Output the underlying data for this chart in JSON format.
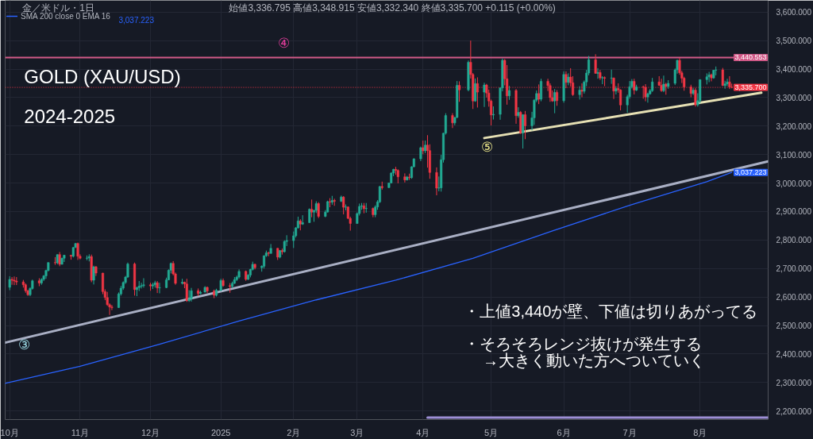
{
  "chart_data": {
    "type": "candlestick",
    "title": "GOLD (XAU/USD)",
    "subtitle": "2024-2025",
    "x": [
      "2024-10-01",
      "2024-10-02",
      "2024-10-03",
      "2024-10-04",
      "2024-10-07",
      "2024-10-08",
      "2024-10-09",
      "2024-10-10",
      "2024-10-11",
      "2024-10-14",
      "2024-10-15",
      "2024-10-16",
      "2024-10-17",
      "2024-10-18",
      "2024-10-21",
      "2024-10-22",
      "2024-10-23",
      "2024-10-24",
      "2024-10-25",
      "2024-10-28",
      "2024-10-29",
      "2024-10-30",
      "2024-10-31",
      "2024-11-01",
      "2024-11-04",
      "2024-11-05",
      "2024-11-06",
      "2024-11-07",
      "2024-11-08",
      "2024-11-11",
      "2024-11-12",
      "2024-11-13",
      "2024-11-14",
      "2024-11-15",
      "2024-11-18",
      "2024-11-19",
      "2024-11-20",
      "2024-11-21",
      "2024-11-22",
      "2024-11-25",
      "2024-11-26",
      "2024-11-27",
      "2024-11-28",
      "2024-11-29",
      "2024-12-02",
      "2024-12-03",
      "2024-12-04",
      "2024-12-05",
      "2024-12-06",
      "2024-12-09",
      "2024-12-10",
      "2024-12-11",
      "2024-12-12",
      "2024-12-13",
      "2024-12-16",
      "2024-12-17",
      "2024-12-18",
      "2024-12-19",
      "2024-12-20",
      "2024-12-23",
      "2024-12-24",
      "2024-12-26",
      "2024-12-27",
      "2024-12-30",
      "2024-12-31",
      "2025-01-02",
      "2025-01-03",
      "2025-01-06",
      "2025-01-07",
      "2025-01-08",
      "2025-01-09",
      "2025-01-10",
      "2025-01-13",
      "2025-01-14",
      "2025-01-15",
      "2025-01-16",
      "2025-01-17",
      "2025-01-20",
      "2025-01-21",
      "2025-01-22",
      "2025-01-23",
      "2025-01-24",
      "2025-01-27",
      "2025-01-28",
      "2025-01-29",
      "2025-01-30",
      "2025-01-31",
      "2025-02-03",
      "2025-02-04",
      "2025-02-05",
      "2025-02-06",
      "2025-02-07",
      "2025-02-10",
      "2025-02-11",
      "2025-02-12",
      "2025-02-13",
      "2025-02-14",
      "2025-02-17",
      "2025-02-18",
      "2025-02-19",
      "2025-02-20",
      "2025-02-21",
      "2025-02-24",
      "2025-02-25",
      "2025-02-26",
      "2025-02-27",
      "2025-02-28",
      "2025-03-03",
      "2025-03-04",
      "2025-03-05",
      "2025-03-06",
      "2025-03-07",
      "2025-03-10",
      "2025-03-11",
      "2025-03-12",
      "2025-03-13",
      "2025-03-14",
      "2025-03-17",
      "2025-03-18",
      "2025-03-19",
      "2025-03-20",
      "2025-03-21",
      "2025-03-24",
      "2025-03-25",
      "2025-03-26",
      "2025-03-27",
      "2025-03-28",
      "2025-03-31",
      "2025-04-01",
      "2025-04-02",
      "2025-04-03",
      "2025-04-04",
      "2025-04-07",
      "2025-04-08",
      "2025-04-09",
      "2025-04-10",
      "2025-04-11",
      "2025-04-14",
      "2025-04-15",
      "2025-04-16",
      "2025-04-17",
      "2025-04-21",
      "2025-04-22",
      "2025-04-23",
      "2025-04-24",
      "2025-04-25",
      "2025-04-28",
      "2025-04-29",
      "2025-04-30",
      "2025-05-01",
      "2025-05-02",
      "2025-05-05",
      "2025-05-06",
      "2025-05-07",
      "2025-05-08",
      "2025-05-09",
      "2025-05-12",
      "2025-05-13",
      "2025-05-14",
      "2025-05-15",
      "2025-05-16",
      "2025-05-19",
      "2025-05-20",
      "2025-05-21",
      "2025-05-22",
      "2025-05-23",
      "2025-05-26",
      "2025-05-27",
      "2025-05-28",
      "2025-05-29",
      "2025-05-30",
      "2025-06-02",
      "2025-06-03",
      "2025-06-04",
      "2025-06-05",
      "2025-06-06",
      "2025-06-09",
      "2025-06-10",
      "2025-06-11",
      "2025-06-12",
      "2025-06-13",
      "2025-06-16",
      "2025-06-17",
      "2025-06-18",
      "2025-06-19",
      "2025-06-20",
      "2025-06-23",
      "2025-06-24",
      "2025-06-25",
      "2025-06-26",
      "2025-06-27",
      "2025-06-30",
      "2025-07-01",
      "2025-07-02",
      "2025-07-03",
      "2025-07-04",
      "2025-07-07",
      "2025-07-08",
      "2025-07-09",
      "2025-07-10",
      "2025-07-11",
      "2025-07-14",
      "2025-07-15",
      "2025-07-16",
      "2025-07-17",
      "2025-07-18",
      "2025-07-21",
      "2025-07-22",
      "2025-07-23",
      "2025-07-24",
      "2025-07-25",
      "2025-07-28",
      "2025-07-29",
      "2025-07-30",
      "2025-07-31",
      "2025-08-01",
      "2025-08-04",
      "2025-08-05",
      "2025-08-06",
      "2025-08-07",
      "2025-08-08",
      "2025-08-11",
      "2025-08-12",
      "2025-08-13",
      "2025-08-14",
      "2025-08-15"
    ],
    "ohlc": [
      [
        2634,
        2673,
        2624,
        2662
      ],
      [
        2662,
        2670,
        2643,
        2659
      ],
      [
        2659,
        2672,
        2642,
        2656
      ],
      [
        2656,
        2670,
        2642,
        2653
      ],
      [
        2653,
        2660,
        2633,
        2643
      ],
      [
        2643,
        2648,
        2615,
        2622
      ],
      [
        2622,
        2625,
        2604,
        2608
      ],
      [
        2608,
        2634,
        2603,
        2630
      ],
      [
        2630,
        2661,
        2626,
        2657
      ],
      [
        2657,
        2666,
        2638,
        2649
      ],
      [
        2649,
        2666,
        2643,
        2662
      ],
      [
        2662,
        2677,
        2656,
        2674
      ],
      [
        2674,
        2696,
        2664,
        2693
      ],
      [
        2693,
        2722,
        2690,
        2721
      ],
      [
        2721,
        2740,
        2713,
        2720
      ],
      [
        2720,
        2750,
        2715,
        2749
      ],
      [
        2749,
        2758,
        2708,
        2715
      ],
      [
        2715,
        2738,
        2714,
        2736
      ],
      [
        2736,
        2748,
        2723,
        2747
      ],
      [
        2747,
        2748,
        2731,
        2743
      ],
      [
        2743,
        2775,
        2739,
        2774
      ],
      [
        2774,
        2790,
        2772,
        2788
      ],
      [
        2788,
        2791,
        2730,
        2743
      ],
      [
        2743,
        2750,
        2732,
        2736
      ],
      [
        2736,
        2746,
        2729,
        2737
      ],
      [
        2737,
        2750,
        2725,
        2742
      ],
      [
        2742,
        2749,
        2652,
        2659
      ],
      [
        2659,
        2710,
        2644,
        2706
      ],
      [
        2706,
        2709,
        2674,
        2684
      ],
      [
        2684,
        2685,
        2610,
        2619
      ],
      [
        2619,
        2627,
        2589,
        2598
      ],
      [
        2598,
        2618,
        2569,
        2573
      ],
      [
        2573,
        2578,
        2537,
        2565
      ],
      [
        2565,
        2572,
        2554,
        2563
      ],
      [
        2563,
        2616,
        2562,
        2611
      ],
      [
        2611,
        2639,
        2605,
        2631
      ],
      [
        2631,
        2655,
        2625,
        2651
      ],
      [
        2651,
        2674,
        2646,
        2670
      ],
      [
        2670,
        2721,
        2667,
        2716
      ],
      [
        2716,
        2721,
        2605,
        2626
      ],
      [
        2626,
        2636,
        2603,
        2633
      ],
      [
        2633,
        2656,
        2621,
        2638
      ],
      [
        2638,
        2650,
        2630,
        2640
      ],
      [
        2640,
        2666,
        2633,
        2643
      ],
      [
        2643,
        2650,
        2622,
        2639
      ],
      [
        2639,
        2650,
        2628,
        2643
      ],
      [
        2643,
        2657,
        2633,
        2650
      ],
      [
        2650,
        2656,
        2614,
        2632
      ],
      [
        2632,
        2650,
        2613,
        2633
      ],
      [
        2633,
        2668,
        2631,
        2660
      ],
      [
        2660,
        2697,
        2659,
        2694
      ],
      [
        2694,
        2721,
        2683,
        2718
      ],
      [
        2718,
        2726,
        2676,
        2681
      ],
      [
        2681,
        2686,
        2643,
        2648
      ],
      [
        2648,
        2664,
        2644,
        2652
      ],
      [
        2652,
        2654,
        2631,
        2646
      ],
      [
        2646,
        2664,
        2583,
        2587
      ],
      [
        2587,
        2624,
        2583,
        2594
      ],
      [
        2594,
        2632,
        2584,
        2622
      ],
      [
        2622,
        2630,
        2604,
        2612
      ],
      [
        2612,
        2622,
        2610,
        2617
      ],
      [
        2617,
        2638,
        2616,
        2634
      ],
      [
        2634,
        2637,
        2614,
        2621
      ],
      [
        2621,
        2626,
        2596,
        2606
      ],
      [
        2606,
        2629,
        2602,
        2624
      ],
      [
        2624,
        2664,
        2620,
        2658
      ],
      [
        2658,
        2665,
        2636,
        2640
      ],
      [
        2640,
        2649,
        2615,
        2637
      ],
      [
        2637,
        2654,
        2631,
        2648
      ],
      [
        2648,
        2670,
        2646,
        2661
      ],
      [
        2661,
        2675,
        2656,
        2670
      ],
      [
        2670,
        2697,
        2665,
        2690
      ],
      [
        2690,
        2693,
        2657,
        2662
      ],
      [
        2662,
        2680,
        2660,
        2677
      ],
      [
        2677,
        2699,
        2669,
        2697
      ],
      [
        2697,
        2724,
        2693,
        2715
      ],
      [
        2715,
        2717,
        2697,
        2703
      ],
      [
        2703,
        2711,
        2689,
        2708
      ],
      [
        2708,
        2746,
        2700,
        2745
      ],
      [
        2745,
        2763,
        2741,
        2755
      ],
      [
        2755,
        2759,
        2743,
        2753
      ],
      [
        2753,
        2786,
        2752,
        2771
      ],
      [
        2771,
        2772,
        2730,
        2740
      ],
      [
        2740,
        2765,
        2736,
        2763
      ],
      [
        2763,
        2770,
        2749,
        2759
      ],
      [
        2759,
        2799,
        2756,
        2795
      ],
      [
        2795,
        2817,
        2779,
        2798
      ],
      [
        2798,
        2830,
        2772,
        2815
      ],
      [
        2815,
        2845,
        2809,
        2843
      ],
      [
        2843,
        2882,
        2840,
        2867
      ],
      [
        2867,
        2873,
        2834,
        2856
      ],
      [
        2856,
        2887,
        2853,
        2861
      ],
      [
        2861,
        2911,
        2860,
        2908
      ],
      [
        2908,
        2942,
        2880,
        2898
      ],
      [
        2898,
        2906,
        2864,
        2904
      ],
      [
        2904,
        2936,
        2895,
        2928
      ],
      [
        2928,
        2933,
        2877,
        2883
      ],
      [
        2883,
        2905,
        2880,
        2898
      ],
      [
        2898,
        2938,
        2897,
        2935
      ],
      [
        2935,
        2947,
        2915,
        2933
      ],
      [
        2933,
        2955,
        2924,
        2939
      ],
      [
        2939,
        2945,
        2920,
        2936
      ],
      [
        2936,
        2956,
        2933,
        2951
      ],
      [
        2951,
        2954,
        2890,
        2915
      ],
      [
        2915,
        2925,
        2904,
        2916
      ],
      [
        2916,
        2918,
        2874,
        2876
      ],
      [
        2876,
        2882,
        2833,
        2858
      ],
      [
        2858,
        2897,
        2857,
        2893
      ],
      [
        2893,
        2928,
        2886,
        2918
      ],
      [
        2918,
        2930,
        2906,
        2920
      ],
      [
        2920,
        2930,
        2894,
        2910
      ],
      [
        2910,
        2930,
        2896,
        2911
      ],
      [
        2911,
        2914,
        2880,
        2889
      ],
      [
        2889,
        2922,
        2880,
        2916
      ],
      [
        2916,
        2940,
        2906,
        2934
      ],
      [
        2934,
        2990,
        2930,
        2988
      ],
      [
        2988,
        3005,
        2977,
        2984
      ],
      [
        2984,
        3001,
        2982,
        3000
      ],
      [
        3000,
        3038,
        2999,
        3035
      ],
      [
        3035,
        3050,
        3024,
        3048
      ],
      [
        3048,
        3057,
        3029,
        3044
      ],
      [
        3044,
        3048,
        2999,
        3022
      ],
      [
        3022,
        3034,
        3002,
        3011
      ],
      [
        3011,
        3025,
        3009,
        3021
      ],
      [
        3021,
        3033,
        3011,
        3019
      ],
      [
        3019,
        3059,
        3015,
        3057
      ],
      [
        3057,
        3087,
        3055,
        3085
      ],
      [
        3085,
        3128,
        3077,
        3124
      ],
      [
        3124,
        3149,
        3101,
        3113
      ],
      [
        3113,
        3149,
        3105,
        3133
      ],
      [
        3133,
        3168,
        3054,
        3114
      ],
      [
        3114,
        3136,
        3015,
        3037
      ],
      [
        3037,
        3055,
        2957,
        2982
      ],
      [
        2982,
        3023,
        2971,
        2983
      ],
      [
        2983,
        3099,
        2970,
        3082
      ],
      [
        3082,
        3176,
        3072,
        3175
      ],
      [
        3175,
        3245,
        3170,
        3237
      ],
      [
        3237,
        3245,
        3193,
        3211
      ],
      [
        3211,
        3232,
        3203,
        3230
      ],
      [
        3230,
        3358,
        3228,
        3343
      ],
      [
        3343,
        3357,
        3285,
        3327
      ],
      [
        3327,
        3430,
        3322,
        3424
      ],
      [
        3424,
        3500,
        3367,
        3381
      ],
      [
        3381,
        3386,
        3260,
        3288
      ],
      [
        3288,
        3367,
        3285,
        3349
      ],
      [
        3349,
        3371,
        3265,
        3319
      ],
      [
        3319,
        3352,
        3267,
        3344
      ],
      [
        3344,
        3348,
        3300,
        3316
      ],
      [
        3316,
        3328,
        3268,
        3288
      ],
      [
        3288,
        3293,
        3202,
        3239
      ],
      [
        3239,
        3269,
        3223,
        3241
      ],
      [
        3241,
        3336,
        3222,
        3334
      ],
      [
        3334,
        3437,
        3322,
        3431
      ],
      [
        3431,
        3435,
        3343,
        3366
      ],
      [
        3366,
        3414,
        3275,
        3306
      ],
      [
        3306,
        3341,
        3292,
        3325
      ],
      [
        3325,
        3330,
        3208,
        3236
      ],
      [
        3236,
        3266,
        3229,
        3248
      ],
      [
        3248,
        3253,
        3172,
        3176
      ],
      [
        3176,
        3241,
        3121,
        3240
      ],
      [
        3240,
        3253,
        3154,
        3201
      ],
      [
        3201,
        3250,
        3185,
        3229
      ],
      [
        3229,
        3295,
        3204,
        3291
      ],
      [
        3291,
        3325,
        3284,
        3314
      ],
      [
        3314,
        3346,
        3277,
        3294
      ],
      [
        3294,
        3366,
        3287,
        3357
      ],
      [
        3357,
        3366,
        3323,
        3342
      ],
      [
        3342,
        3350,
        3285,
        3300
      ],
      [
        3300,
        3325,
        3285,
        3288
      ],
      [
        3288,
        3330,
        3245,
        3318
      ],
      [
        3318,
        3326,
        3271,
        3289
      ],
      [
        3289,
        3392,
        3282,
        3381
      ],
      [
        3381,
        3392,
        3333,
        3353
      ],
      [
        3353,
        3385,
        3343,
        3372
      ],
      [
        3372,
        3403,
        3339,
        3352
      ],
      [
        3352,
        3375,
        3306,
        3310
      ],
      [
        3310,
        3340,
        3293,
        3326
      ],
      [
        3326,
        3350,
        3301,
        3322
      ],
      [
        3322,
        3360,
        3314,
        3355
      ],
      [
        3355,
        3397,
        3340,
        3386
      ],
      [
        3386,
        3446,
        3378,
        3433
      ],
      [
        3433,
        3452,
        3384,
        3385
      ],
      [
        3385,
        3403,
        3366,
        3388
      ],
      [
        3388,
        3397,
        3362,
        3369
      ],
      [
        3369,
        3375,
        3347,
        3370
      ],
      [
        3370,
        3374,
        3340,
        3368
      ],
      [
        3368,
        3398,
        3348,
        3369
      ],
      [
        3369,
        3370,
        3295,
        3323
      ],
      [
        3323,
        3340,
        3311,
        3332
      ],
      [
        3332,
        3350,
        3317,
        3327
      ],
      [
        3327,
        3329,
        3255,
        3274
      ],
      [
        3274,
        3310,
        3247,
        3303
      ],
      [
        3303,
        3358,
        3296,
        3338
      ],
      [
        3338,
        3365,
        3332,
        3357
      ],
      [
        3357,
        3366,
        3311,
        3326
      ],
      [
        3326,
        3345,
        3323,
        3337
      ],
      [
        3337,
        3342,
        3296,
        3336
      ],
      [
        3336,
        3347,
        3287,
        3302
      ],
      [
        3302,
        3317,
        3282,
        3313
      ],
      [
        3313,
        3330,
        3310,
        3324
      ],
      [
        3324,
        3369,
        3320,
        3355
      ],
      [
        3355,
        3375,
        3341,
        3343
      ],
      [
        3343,
        3366,
        3320,
        3324
      ],
      [
        3324,
        3377,
        3319,
        3347
      ],
      [
        3347,
        3352,
        3310,
        3339
      ],
      [
        3339,
        3361,
        3331,
        3350
      ],
      [
        3350,
        3402,
        3344,
        3397
      ],
      [
        3397,
        3433,
        3384,
        3431
      ],
      [
        3431,
        3439,
        3380,
        3387
      ],
      [
        3387,
        3394,
        3351,
        3368
      ],
      [
        3368,
        3373,
        3324,
        3337
      ],
      [
        3337,
        3345,
        3301,
        3314
      ],
      [
        3314,
        3334,
        3309,
        3326
      ],
      [
        3326,
        3334,
        3268,
        3274
      ],
      [
        3274,
        3315,
        3268,
        3289
      ],
      [
        3289,
        3363,
        3280,
        3363
      ],
      [
        3363,
        3385,
        3346,
        3373
      ],
      [
        3373,
        3390,
        3354,
        3380
      ],
      [
        3380,
        3384,
        3357,
        3369
      ],
      [
        3369,
        3397,
        3366,
        3396
      ],
      [
        3396,
        3409,
        3378,
        3397
      ],
      [
        3397,
        3404,
        3341,
        3342
      ],
      [
        3342,
        3359,
        3331,
        3348
      ],
      [
        3348,
        3366,
        3340,
        3355
      ],
      [
        3355,
        3375,
        3330,
        3337
      ],
      [
        3336.795,
        3348.915,
        3332.34,
        3335.7
      ]
    ],
    "colors": [
      "#22ab94",
      "#f23645",
      "#f23645",
      "#f23645",
      "#f23645",
      "#f23645",
      "#f23645",
      "#22ab94",
      "#22ab94",
      "#f23645",
      "#22ab94",
      "#22ab94",
      "#22ab94",
      "#22ab94",
      "#f23645",
      "#22ab94",
      "#f23645",
      "#22ab94",
      "#22ab94",
      "#f23645",
      "#22ab94",
      "#22ab94",
      "#f23645",
      "#f23645",
      "#22ab94",
      "#22ab94",
      "#f23645",
      "#22ab94",
      "#f23645",
      "#f23645",
      "#f23645",
      "#f23645",
      "#f23645",
      "#f23645",
      "#22ab94",
      "#22ab94",
      "#22ab94",
      "#22ab94",
      "#22ab94",
      "#f23645",
      "#22ab94",
      "#22ab94",
      "#22ab94",
      "#22ab94",
      "#f23645",
      "#22ab94",
      "#22ab94",
      "#f23645",
      "#22ab94",
      "#22ab94",
      "#22ab94",
      "#22ab94",
      "#f23645",
      "#f23645",
      "#22ab94",
      "#f23645",
      "#f23645",
      "#22ab94",
      "#22ab94",
      "#f23645",
      "#22ab94",
      "#22ab94",
      "#f23645",
      "#f23645",
      "#22ab94",
      "#22ab94",
      "#f23645",
      "#f23645",
      "#22ab94",
      "#22ab94",
      "#22ab94",
      "#22ab94",
      "#f23645",
      "#22ab94",
      "#22ab94",
      "#22ab94",
      "#f23645",
      "#22ab94",
      "#22ab94",
      "#22ab94",
      "#f23645",
      "#22ab94",
      "#f23645",
      "#22ab94",
      "#f23645",
      "#22ab94",
      "#22ab94",
      "#22ab94",
      "#22ab94",
      "#22ab94",
      "#f23645",
      "#22ab94",
      "#22ab94",
      "#f23645",
      "#22ab94",
      "#22ab94",
      "#f23645",
      "#22ab94",
      "#22ab94",
      "#f23645",
      "#22ab94",
      "#f23645",
      "#22ab94",
      "#f23645",
      "#22ab94",
      "#f23645",
      "#f23645",
      "#22ab94",
      "#22ab94",
      "#22ab94",
      "#f23645",
      "#22ab94",
      "#f23645",
      "#22ab94",
      "#22ab94",
      "#22ab94",
      "#f23645",
      "#22ab94",
      "#22ab94",
      "#22ab94",
      "#f23645",
      "#f23645",
      "#f23645",
      "#22ab94",
      "#f23645",
      "#22ab94",
      "#22ab94",
      "#22ab94",
      "#f23645",
      "#22ab94",
      "#f23645",
      "#f23645",
      "#f23645",
      "#22ab94",
      "#22ab94",
      "#22ab94",
      "#22ab94",
      "#f23645",
      "#22ab94",
      "#22ab94",
      "#f23645",
      "#22ab94",
      "#f23645",
      "#f23645",
      "#22ab94",
      "#f23645",
      "#22ab94",
      "#f23645",
      "#f23645",
      "#f23645",
      "#22ab94",
      "#22ab94",
      "#22ab94",
      "#f23645",
      "#f23645",
      "#22ab94",
      "#f23645",
      "#22ab94",
      "#f23645",
      "#22ab94",
      "#f23645",
      "#22ab94",
      "#22ab94",
      "#22ab94",
      "#f23645",
      "#22ab94",
      "#f23645",
      "#f23645",
      "#f23645",
      "#22ab94",
      "#f23645",
      "#22ab94",
      "#f23645",
      "#22ab94",
      "#f23645",
      "#f23645",
      "#22ab94",
      "#f23645",
      "#22ab94",
      "#22ab94",
      "#22ab94",
      "#f23645",
      "#22ab94",
      "#f23645",
      "#22ab94",
      "#f23645",
      "#22ab94",
      "#f23645",
      "#22ab94",
      "#f23645",
      "#f23645",
      "#22ab94",
      "#22ab94",
      "#22ab94",
      "#f23645",
      "#22ab94",
      "#f23645",
      "#f23645",
      "#22ab94",
      "#22ab94",
      "#22ab94",
      "#f23645",
      "#f23645",
      "#22ab94",
      "#f23645",
      "#22ab94",
      "#22ab94",
      "#22ab94",
      "#f23645",
      "#f23645",
      "#f23645",
      "#f23645",
      "#22ab94",
      "#f23645",
      "#22ab94",
      "#22ab94",
      "#22ab94",
      "#22ab94",
      "#f23645",
      "#22ab94",
      "#22ab94",
      "#f23645",
      "#22ab94",
      "#22ab94",
      "#f23645",
      "#f23645"
    ],
    "series": [
      {
        "type": "line",
        "name": "SMA 200 close 0 EMA 16",
        "color": "#2962ff",
        "x": [
          "2024-09-29",
          "2024-11-01",
          "2024-12-06",
          "2025-01-10",
          "2025-02-13",
          "2025-03-20",
          "2025-04-23",
          "2025-05-28",
          "2025-07-01",
          "2025-08-04",
          "2025-08-15"
        ],
        "values": [
          2297,
          2357,
          2434,
          2516,
          2590,
          2659,
          2736,
          2832,
          2922,
          3005,
          3037.223
        ],
        "value_labels": [
          null,
          null,
          null,
          null,
          null,
          null,
          null,
          null,
          null,
          null,
          "3,037.223"
        ]
      },
      {
        "type": "line",
        "color": "#a9afc4",
        "x": [
          "2024-09-29",
          "2025-08-31"
        ],
        "values": [
          2440,
          3076
        ]
      },
      {
        "type": "line",
        "color": "#e6e0b4",
        "x": [
          "2025-04-28",
          "2025-08-28"
        ],
        "values": [
          3158,
          3317
        ]
      },
      {
        "type": "line",
        "color": "#9d8fd6",
        "x": [
          "2025-04-03",
          "2025-08-31"
        ],
        "values": [
          2177,
          2177
        ]
      }
    ],
    "xlim": [
      "2024-09-29",
      "2025-08-31"
    ],
    "xticks": [
      {
        "value": "2024-10-01",
        "label": "10月"
      },
      {
        "value": "2024-11-01",
        "label": "11月"
      },
      {
        "value": "2024-12-02",
        "label": "12月"
      },
      {
        "value": "2025-01-02",
        "label": "2025"
      },
      {
        "value": "2025-02-03",
        "label": "2月"
      },
      {
        "value": "2025-03-03",
        "label": "3月"
      },
      {
        "value": "2025-04-01",
        "label": "4月"
      },
      {
        "value": "2025-05-01",
        "label": "5月"
      },
      {
        "value": "2025-06-02",
        "label": "6月"
      },
      {
        "value": "2025-07-01",
        "label": "7月"
      },
      {
        "value": "2025-08-01",
        "label": "8月"
      }
    ],
    "ylim": [
      2170,
      3641
    ],
    "yticks": [
      {
        "value": 2200,
        "label": "2,200.000"
      },
      {
        "value": 2300,
        "label": "2,300.000"
      },
      {
        "value": 2400,
        "label": "2,400.000"
      },
      {
        "value": 2500,
        "label": "2,500.000"
      },
      {
        "value": 2600,
        "label": "2,600.000"
      },
      {
        "value": 2700,
        "label": "2,700.000"
      },
      {
        "value": 2800,
        "label": "2,800.000"
      },
      {
        "value": 2900,
        "label": "2,900.000"
      },
      {
        "value": 3000,
        "label": "3,000.000"
      },
      {
        "value": 3100,
        "label": "3,100.000"
      },
      {
        "value": 3200,
        "label": "3,200.000"
      },
      {
        "value": 3300,
        "label": "3,300.000"
      },
      {
        "value": 3400,
        "label": "3,400.000"
      },
      {
        "value": 3500,
        "label": "3,500.000"
      },
      {
        "value": 3600,
        "label": "3,600.000"
      }
    ],
    "ref_lines": [
      {
        "axis": "y",
        "value": 3440.553,
        "label": "3,440.553",
        "color": "#d25a88"
      },
      {
        "axis": "y",
        "value": 3335.7,
        "label": "3,335.700",
        "color": "#f23645",
        "line_style": "dotted"
      }
    ],
    "annotations": [
      "金／米ドル・1日",
      "始値3,336.795 高値3,348.915 安値3,332.340 終値3,335.700 +0.115 (+0.00%)",
      "3,037.223",
      "・上値3,440が壁、下値は切りあがってる",
      "・そろそろレンジ抜けが発生する",
      "→大きく動いた方へついていく",
      "③",
      "④",
      "⑤"
    ],
    "grid": true,
    "legend": "top left"
  }
}
